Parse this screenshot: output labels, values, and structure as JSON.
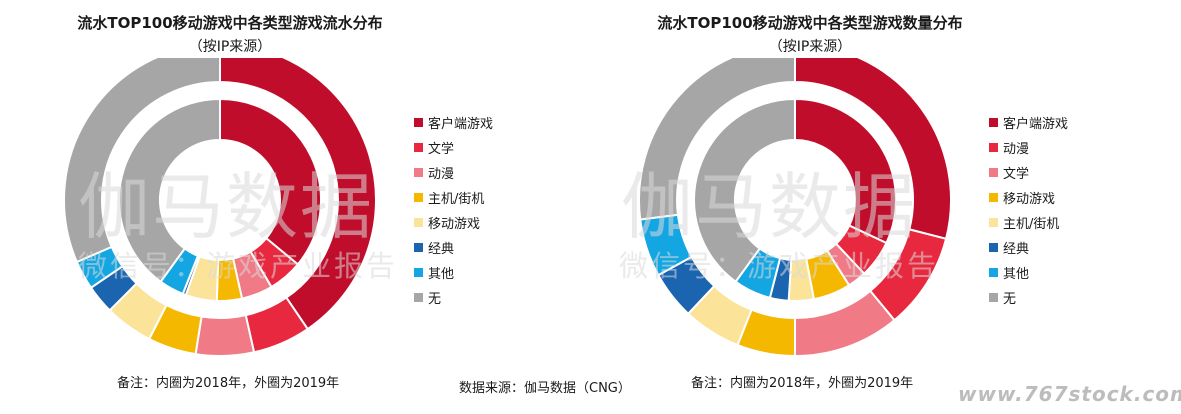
{
  "chart_data": [
    {
      "type": "donut",
      "title": "流水TOP100移动游戏中各类型游戏流水分布",
      "subtitle": "（按IP来源）",
      "categories": [
        "客户端游戏",
        "文学",
        "动漫",
        "主机/街机",
        "移动游戏",
        "经典",
        "其他",
        "无"
      ],
      "colors": [
        "#c00d2b",
        "#e8283f",
        "#f07a86",
        "#f5b800",
        "#fbe39a",
        "#1a64b0",
        "#14a6e2",
        "#a6a6a6"
      ],
      "series": [
        {
          "name": "2019年",
          "ring": "outer",
          "values": [
            40.5,
            6.0,
            6.0,
            5.0,
            5.0,
            3.0,
            3.0,
            31.5
          ]
        },
        {
          "name": "2018年",
          "ring": "inner",
          "values": [
            36.0,
            5.5,
            5.0,
            4.0,
            5.0,
            0.5,
            4.0,
            40.0
          ]
        }
      ],
      "legend_position": "right",
      "note": "备注：内圈为2018年，外圈为2019年"
    },
    {
      "type": "donut",
      "title": "流水TOP100移动游戏中各类型游戏数量分布",
      "subtitle": "（按IP来源）",
      "categories": [
        "客户端游戏",
        "动漫",
        "文学",
        "移动游戏",
        "主机/街机",
        "经典",
        "其他",
        "无"
      ],
      "colors": [
        "#c00d2b",
        "#e8283f",
        "#f07a86",
        "#f5b800",
        "#fbe39a",
        "#1a64b0",
        "#14a6e2",
        "#a6a6a6"
      ],
      "series": [
        {
          "name": "2019年",
          "ring": "outer",
          "values": [
            29.0,
            10.0,
            11.0,
            6.0,
            6.0,
            5.0,
            6.0,
            27.0
          ]
        },
        {
          "name": "2018年",
          "ring": "inner",
          "values": [
            32.0,
            6.0,
            3.0,
            6.0,
            4.0,
            3.0,
            6.0,
            40.0
          ]
        }
      ],
      "legend_position": "right",
      "note": "备注：内圈为2018年，外圈为2019年"
    }
  ],
  "watermark": {
    "main": "伽马数据",
    "sub": "微信号：游戏产业报告"
  },
  "source": "数据来源：伽马数据（CNG）",
  "site_watermark": "www.767stock.com"
}
